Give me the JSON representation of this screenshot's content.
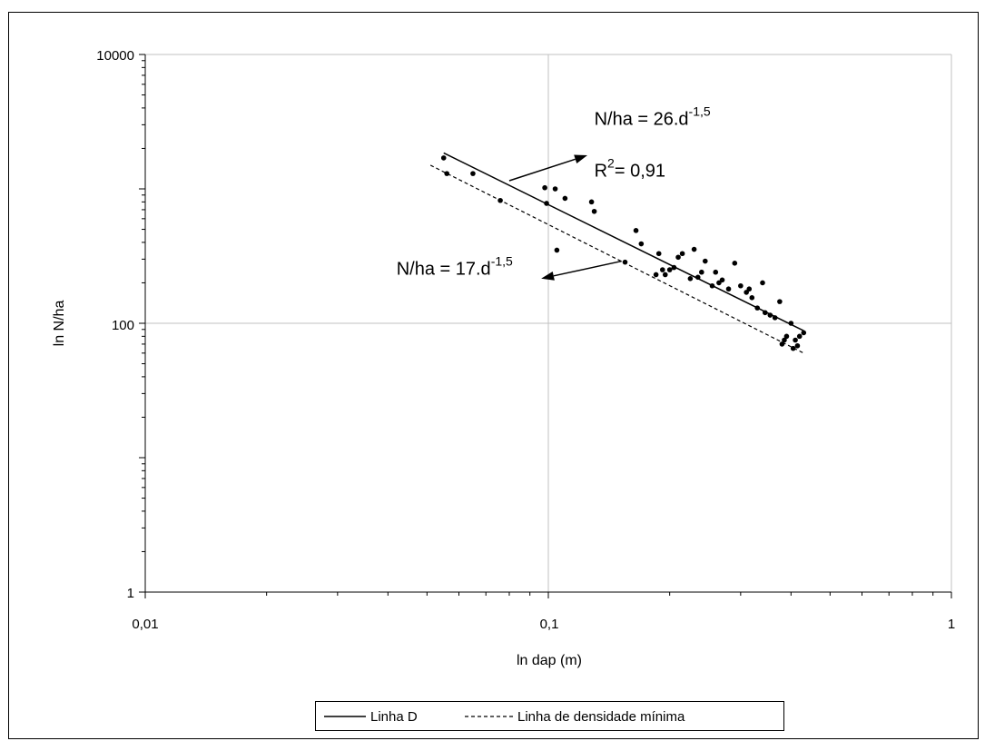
{
  "chart_data": {
    "type": "scatter",
    "xscale": "log",
    "yscale": "log",
    "xlim": [
      0.01,
      1
    ],
    "ylim": [
      1,
      10000
    ],
    "xlabel": "ln dap (m)",
    "ylabel": "ln N/ha",
    "x_tick_labels": [
      "0,01",
      "0,1",
      "1"
    ],
    "y_tick_labels": [
      "1",
      "100",
      "10000"
    ],
    "grid": true,
    "legend_position": "bottom-center",
    "points": [
      {
        "x": 0.055,
        "y": 1700
      },
      {
        "x": 0.056,
        "y": 1300
      },
      {
        "x": 0.065,
        "y": 1300
      },
      {
        "x": 0.076,
        "y": 820
      },
      {
        "x": 0.098,
        "y": 1020
      },
      {
        "x": 0.099,
        "y": 780
      },
      {
        "x": 0.104,
        "y": 1000
      },
      {
        "x": 0.105,
        "y": 350
      },
      {
        "x": 0.11,
        "y": 850
      },
      {
        "x": 0.128,
        "y": 800
      },
      {
        "x": 0.13,
        "y": 680
      },
      {
        "x": 0.155,
        "y": 285
      },
      {
        "x": 0.165,
        "y": 490
      },
      {
        "x": 0.17,
        "y": 390
      },
      {
        "x": 0.185,
        "y": 230
      },
      {
        "x": 0.188,
        "y": 330
      },
      {
        "x": 0.192,
        "y": 250
      },
      {
        "x": 0.195,
        "y": 230
      },
      {
        "x": 0.2,
        "y": 250
      },
      {
        "x": 0.205,
        "y": 260
      },
      {
        "x": 0.21,
        "y": 310
      },
      {
        "x": 0.215,
        "y": 330
      },
      {
        "x": 0.225,
        "y": 215
      },
      {
        "x": 0.23,
        "y": 355
      },
      {
        "x": 0.235,
        "y": 220
      },
      {
        "x": 0.24,
        "y": 240
      },
      {
        "x": 0.245,
        "y": 290
      },
      {
        "x": 0.255,
        "y": 190
      },
      {
        "x": 0.26,
        "y": 240
      },
      {
        "x": 0.265,
        "y": 200
      },
      {
        "x": 0.27,
        "y": 210
      },
      {
        "x": 0.28,
        "y": 180
      },
      {
        "x": 0.29,
        "y": 280
      },
      {
        "x": 0.3,
        "y": 190
      },
      {
        "x": 0.31,
        "y": 170
      },
      {
        "x": 0.315,
        "y": 180
      },
      {
        "x": 0.32,
        "y": 155
      },
      {
        "x": 0.33,
        "y": 130
      },
      {
        "x": 0.34,
        "y": 200
      },
      {
        "x": 0.345,
        "y": 120
      },
      {
        "x": 0.355,
        "y": 115
      },
      {
        "x": 0.365,
        "y": 110
      },
      {
        "x": 0.375,
        "y": 145
      },
      {
        "x": 0.38,
        "y": 70
      },
      {
        "x": 0.385,
        "y": 75
      },
      {
        "x": 0.39,
        "y": 80
      },
      {
        "x": 0.4,
        "y": 100
      },
      {
        "x": 0.405,
        "y": 65
      },
      {
        "x": 0.41,
        "y": 75
      },
      {
        "x": 0.415,
        "y": 68
      },
      {
        "x": 0.42,
        "y": 80
      },
      {
        "x": 0.43,
        "y": 85
      }
    ],
    "series": [
      {
        "name": "Linha D",
        "style": "solid",
        "color": "#000000",
        "x": [
          0.055,
          0.43
        ],
        "y": [
          1850,
          88
        ]
      },
      {
        "name": "Linha de densidade mínima",
        "style": "dashed",
        "color": "#000000",
        "x": [
          0.051,
          0.43
        ],
        "y": [
          1500,
          60
        ]
      }
    ],
    "annotations": [
      {
        "base": "N/ha = 26.d",
        "sup": "-1,5",
        "x": 0.13,
        "y": 3000
      },
      {
        "base": "R",
        "sup": "2",
        "rest": "= 0,91",
        "x": 0.13,
        "y": 1230
      },
      {
        "base": "N/ha = 17.d",
        "sup": "-1,5",
        "x": 0.042,
        "y": 230
      }
    ],
    "arrows": [
      {
        "from": [
          0.08,
          1150
        ],
        "to": [
          0.125,
          1780
        ]
      },
      {
        "from": [
          0.152,
          290
        ],
        "to": [
          0.096,
          215
        ]
      }
    ]
  }
}
